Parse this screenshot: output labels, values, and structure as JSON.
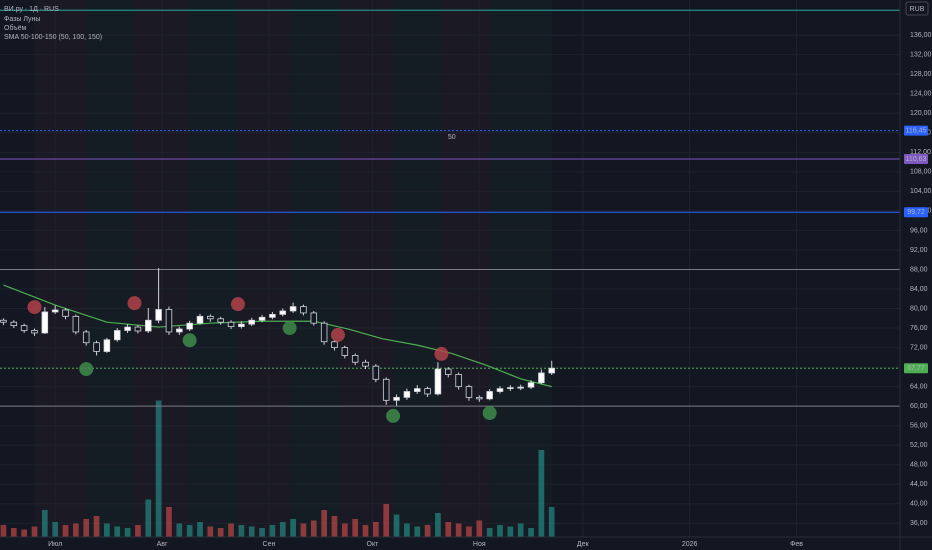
{
  "chart_data": {
    "type": "candlestick",
    "title": "ВИ.ру · 1Д · RUS",
    "indicators": [
      "Фазы Луны",
      "Объём",
      "SMA 50-100-150 (50, 100, 150)"
    ],
    "currency": "RUB",
    "xlim": [
      -16,
      245
    ],
    "xticks": [
      {
        "value": 0,
        "label": "Июл"
      },
      {
        "value": 31,
        "label": "Авг"
      },
      {
        "value": 62,
        "label": "Сен"
      },
      {
        "value": 92,
        "label": "Окт"
      },
      {
        "value": 123,
        "label": "Ноя"
      },
      {
        "value": 153,
        "label": "Дек"
      },
      {
        "value": 184,
        "label": "2026"
      },
      {
        "value": 215,
        "label": "Фев"
      }
    ],
    "ylim": [
      33.2,
      143.2
    ],
    "yticks": [
      {
        "value": 36,
        "label": "36,00"
      },
      {
        "value": 40,
        "label": "40,00"
      },
      {
        "value": 44,
        "label": "44,00"
      },
      {
        "value": 48,
        "label": "48,00"
      },
      {
        "value": 52,
        "label": "52,00"
      },
      {
        "value": 56,
        "label": "56,00"
      },
      {
        "value": 60,
        "label": "60,00"
      },
      {
        "value": 64,
        "label": "64,00"
      },
      {
        "value": 68,
        "label": "68,00"
      },
      {
        "value": 72,
        "label": "72,00"
      },
      {
        "value": 76,
        "label": "76,00"
      },
      {
        "value": 80,
        "label": "80,00"
      },
      {
        "value": 84,
        "label": "84,00"
      },
      {
        "value": 88,
        "label": "88,00"
      },
      {
        "value": 92,
        "label": "92,00"
      },
      {
        "value": 96,
        "label": "96,00"
      },
      {
        "value": 100,
        "label": "100,00"
      },
      {
        "value": 104,
        "label": "104,00"
      },
      {
        "value": 108,
        "label": "108,00"
      },
      {
        "value": 112,
        "label": "112,00"
      },
      {
        "value": 116,
        "label": "116,00"
      },
      {
        "value": 120,
        "label": "120,00"
      },
      {
        "value": 124,
        "label": "124,00"
      },
      {
        "value": 128,
        "label": "128,00"
      },
      {
        "value": 132,
        "label": "132,00"
      },
      {
        "value": 136,
        "label": "136,00"
      }
    ],
    "grid": true,
    "up_color": "#ffffff",
    "down_color": "#131722",
    "x": [
      -15,
      -12,
      -9,
      -6,
      -3,
      0,
      3,
      6,
      9,
      12,
      15,
      18,
      21,
      24,
      27,
      30,
      33,
      36,
      39,
      42,
      45,
      48,
      51,
      54,
      57,
      60,
      63,
      66,
      69,
      72,
      75,
      78,
      81,
      84,
      87,
      90,
      93,
      96,
      99,
      102,
      105,
      108,
      111,
      114,
      117,
      120,
      123,
      126,
      129,
      132,
      135,
      138,
      141,
      144
    ],
    "open": [
      77.6,
      77.2,
      76.5,
      75.5,
      75.0,
      79.3,
      79.7,
      78.4,
      75.2,
      73.0,
      71.2,
      73.6,
      75.5,
      76.2,
      75.4,
      77.6,
      79.8,
      75.2,
      75.8,
      77.0,
      78.4,
      77.9,
      77.2,
      76.3,
      76.8,
      77.6,
      78.2,
      78.8,
      79.5,
      80.4,
      79.1,
      77.0,
      73.2,
      72.0,
      70.4,
      69.0,
      68.2,
      65.5,
      61.2,
      61.8,
      63.0,
      63.6,
      62.5,
      67.6,
      66.5,
      64.0,
      61.8,
      61.5,
      63.0,
      63.6,
      63.8,
      63.9,
      64.8,
      66.8
    ],
    "high": [
      78.0,
      77.6,
      76.9,
      75.9,
      80.3,
      80.6,
      80.1,
      78.8,
      75.6,
      73.4,
      74.0,
      76.0,
      76.8,
      76.6,
      80.1,
      88.3,
      80.4,
      76.3,
      77.5,
      78.9,
      78.8,
      78.3,
      77.6,
      77.4,
      78.1,
      78.7,
      79.3,
      80.0,
      81.2,
      80.8,
      79.5,
      77.4,
      73.6,
      72.4,
      70.8,
      69.5,
      68.6,
      65.9,
      62.4,
      63.6,
      64.3,
      64.0,
      69.0,
      68.0,
      66.9,
      64.4,
      62.2,
      63.5,
      64.1,
      64.3,
      64.4,
      65.3,
      67.5,
      69.3
    ],
    "low": [
      76.6,
      76.0,
      75.0,
      74.4,
      74.8,
      78.9,
      77.8,
      74.7,
      72.4,
      70.4,
      70.9,
      73.2,
      75.0,
      74.9,
      75.0,
      77.0,
      74.6,
      74.6,
      75.4,
      76.7,
      77.3,
      76.7,
      75.8,
      75.9,
      76.4,
      77.2,
      77.8,
      78.4,
      79.1,
      78.6,
      76.5,
      72.6,
      71.4,
      69.8,
      68.4,
      67.6,
      64.9,
      60.3,
      60.1,
      61.3,
      62.5,
      61.9,
      62.2,
      65.9,
      63.4,
      61.1,
      60.9,
      61.2,
      62.6,
      63.1,
      63.3,
      63.5,
      64.5,
      66.4
    ],
    "close": [
      77.2,
      76.5,
      75.5,
      75.0,
      79.3,
      79.7,
      78.4,
      75.2,
      73.0,
      71.2,
      73.6,
      75.5,
      76.2,
      75.4,
      77.6,
      79.8,
      75.2,
      75.8,
      77.0,
      78.4,
      77.9,
      77.2,
      76.3,
      76.8,
      77.6,
      78.2,
      78.8,
      79.5,
      80.4,
      79.1,
      77.0,
      73.2,
      72.0,
      70.4,
      69.0,
      68.2,
      65.5,
      61.2,
      61.8,
      63.0,
      63.6,
      62.5,
      67.6,
      66.5,
      64.0,
      61.8,
      61.5,
      63.0,
      63.6,
      63.8,
      63.9,
      64.8,
      66.8,
      67.77
    ],
    "volume": {
      "values": [
        8,
        6,
        5,
        7,
        18,
        10,
        8,
        9,
        12,
        14,
        9,
        7,
        6,
        8,
        25,
        91,
        20,
        9,
        8,
        10,
        7,
        6,
        9,
        8,
        7,
        6,
        8,
        10,
        12,
        9,
        11,
        18,
        14,
        9,
        12,
        8,
        10,
        22,
        15,
        9,
        7,
        8,
        16,
        10,
        9,
        7,
        11,
        6,
        8,
        7,
        9,
        6,
        58,
        20
      ],
      "vlim": [
        0,
        100
      ],
      "up_color": "#26a69a",
      "down_color": "#ef5350"
    },
    "sma": {
      "color": "#4caf50",
      "x": [
        -15,
        0,
        15,
        30,
        45,
        60,
        75,
        85,
        95,
        105,
        115,
        125,
        135,
        144
      ],
      "values": [
        84.8,
        80.7,
        77.2,
        76.2,
        77.0,
        77.4,
        77.4,
        75.8,
        73.8,
        72.5,
        70.8,
        68.4,
        65.6,
        64.0
      ]
    },
    "moon_phases": [
      {
        "x": -6,
        "y": 80.3,
        "color": "#b2424a"
      },
      {
        "x": 23,
        "y": 81.1,
        "color": "#b2424a"
      },
      {
        "x": 53,
        "y": 80.9,
        "color": "#b2424a"
      },
      {
        "x": 82,
        "y": 74.6,
        "color": "#b2424a"
      },
      {
        "x": 112,
        "y": 70.7,
        "color": "#b2424a"
      },
      {
        "x": 9,
        "y": 67.6,
        "color": "#3d8b4a"
      },
      {
        "x": 39,
        "y": 73.5,
        "color": "#3d8b4a"
      },
      {
        "x": 68,
        "y": 76.0,
        "color": "#3d8b4a"
      },
      {
        "x": 98,
        "y": 58.0,
        "color": "#3d8b4a"
      },
      {
        "x": 126,
        "y": 58.6,
        "color": "#3d8b4a"
      }
    ],
    "levels": [
      {
        "value": 141.1,
        "color": "#26a69a",
        "style": "solid"
      },
      {
        "value": 116.45,
        "label": "116,45",
        "color": "#2962ff",
        "style": "dotted"
      },
      {
        "value": 110.63,
        "label": "110,63",
        "color": "#7e57c2",
        "style": "solid"
      },
      {
        "value": 99.72,
        "label": "99,72",
        "color": "#2962ff",
        "style": "solid"
      },
      {
        "value": 88,
        "color": "#787b86",
        "style": "solid"
      },
      {
        "value": 67.77,
        "label": "67,77",
        "color": "#4caf50",
        "style": "dotted"
      },
      {
        "value": 60,
        "color": "#787b86",
        "style": "solid"
      }
    ],
    "annotation": {
      "text": "50",
      "x": 115,
      "y": 115.1,
      "color": "#2962ff"
    }
  }
}
